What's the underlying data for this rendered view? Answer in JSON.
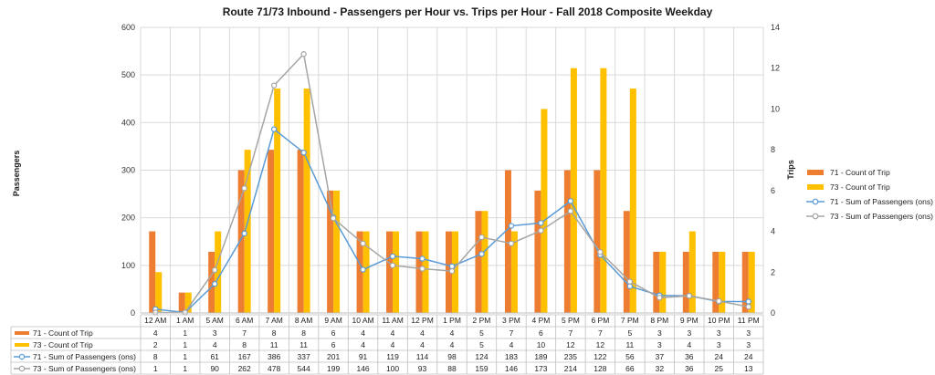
{
  "chart_data": {
    "type": "bar",
    "title": "Route 71/73 Inbound - Passengers per Hour vs. Trips per Hour - Fall 2018 Composite Weekday",
    "ylabel": "Passengers",
    "y2label": "Trips",
    "ylim": [
      0,
      600
    ],
    "y2lim": [
      0,
      14
    ],
    "yticks": [
      "0",
      "100",
      "200",
      "300",
      "400",
      "500",
      "600"
    ],
    "y2ticks": [
      "0",
      "2",
      "4",
      "6",
      "8",
      "10",
      "12",
      "14"
    ],
    "grid": true,
    "legend_position": "right",
    "categories": [
      "12 AM",
      "1 AM",
      "5 AM",
      "6 AM",
      "7 AM",
      "8 AM",
      "9 AM",
      "10 AM",
      "11 AM",
      "12 PM",
      "1 PM",
      "2 PM",
      "3 PM",
      "4 PM",
      "5 PM",
      "6 PM",
      "7 PM",
      "8 PM",
      "9 PM",
      "10 PM",
      "11 PM"
    ],
    "series": [
      {
        "name": "71 - Count of Trip",
        "kind": "bar",
        "axis": "right",
        "color": "#ED7D31",
        "values": [
          4,
          1,
          3,
          7,
          8,
          8,
          6,
          4,
          4,
          4,
          4,
          5,
          7,
          6,
          7,
          7,
          5,
          3,
          3,
          3,
          3
        ]
      },
      {
        "name": "73 - Count of Trip",
        "kind": "bar",
        "axis": "right",
        "color": "#FFC000",
        "values": [
          2,
          1,
          4,
          8,
          11,
          11,
          6,
          4,
          4,
          4,
          4,
          5,
          4,
          10,
          12,
          12,
          11,
          3,
          4,
          3,
          3
        ]
      },
      {
        "name": "71 - Sum of Passengers (ons)",
        "kind": "line",
        "axis": "left",
        "color": "#5B9BD5",
        "values": [
          8,
          1,
          61,
          167,
          386,
          337,
          201,
          91,
          119,
          114,
          98,
          124,
          183,
          189,
          235,
          122,
          56,
          37,
          36,
          24,
          24
        ]
      },
      {
        "name": "73 - Sum of Passengers (ons)",
        "kind": "line",
        "axis": "left",
        "color": "#A5A5A5",
        "values": [
          1,
          1,
          90,
          262,
          478,
          544,
          199,
          146,
          100,
          93,
          88,
          159,
          146,
          173,
          214,
          128,
          66,
          32,
          36,
          25,
          13
        ]
      }
    ]
  }
}
